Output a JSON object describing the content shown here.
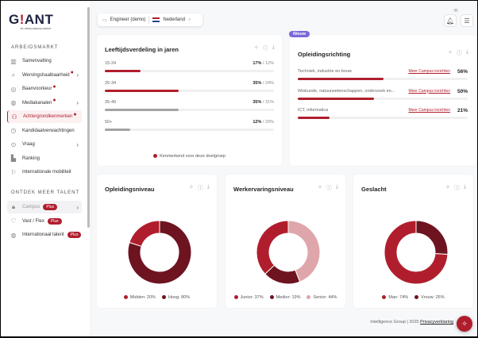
{
  "brand": {
    "logo": "GIANT",
    "tagline": "BY INTELLIGENCE GROUP",
    "accent": "#b01e2d"
  },
  "sidebar": {
    "section1": "ARBEIDSMARKT",
    "items": [
      {
        "label": "Samenvatting",
        "icon": "bar-chart-icon",
        "dot": false,
        "chevron": false
      },
      {
        "label": "Wervingshaalbaarheid",
        "icon": "search-icon",
        "dot": true,
        "chevron": true
      },
      {
        "label": "Baanvoorkeur",
        "icon": "target-icon",
        "dot": true,
        "chevron": false
      },
      {
        "label": "Mediakanalen",
        "icon": "globe-icon",
        "dot": true,
        "chevron": true
      },
      {
        "label": "Achtergrondkenmerken",
        "icon": "users-icon",
        "dot": true,
        "chevron": false,
        "active": true
      },
      {
        "label": "Kandidaatverwachtingen",
        "icon": "clock-icon",
        "dot": false,
        "chevron": false
      },
      {
        "label": "Vraag",
        "icon": "zoom-icon",
        "dot": false,
        "chevron": true
      },
      {
        "label": "Ranking",
        "icon": "podium-icon",
        "dot": false,
        "chevron": false
      },
      {
        "label": "Internationale mobiliteit",
        "icon": "flag-icon",
        "dot": false,
        "chevron": false
      }
    ],
    "section2": "ONTDEK MEER TALENT",
    "items2": [
      {
        "label": "Campus",
        "badge": "Plus",
        "icon": "lock-icon",
        "chevron": true
      },
      {
        "label": "Vast / Flex",
        "badge": "Plus",
        "icon": "handshake-icon"
      },
      {
        "label": "Internationaal talent",
        "badge": "Plus",
        "icon": "globe-icon"
      }
    ]
  },
  "filter": {
    "profession": "Engineer (demo)",
    "country": "Nederland"
  },
  "notifications": {
    "count": "11"
  },
  "age": {
    "title": "Leeftijdsverdeling in jaren",
    "rows": [
      {
        "label": "15-24",
        "value": "17%",
        "compare": "12%",
        "pct": 17,
        "highlight": true
      },
      {
        "label": "25-34",
        "value": "35%",
        "compare": "24%",
        "pct": 35,
        "highlight": true
      },
      {
        "label": "35-49",
        "value": "35%",
        "compare": "31%",
        "pct": 35,
        "highlight": false
      },
      {
        "label": "50+",
        "value": "12%",
        "compare": "33%",
        "pct": 12,
        "highlight": false
      }
    ],
    "legend": "Kenmerkend voor deze doelgroep"
  },
  "study": {
    "badge": "Nieuw",
    "title": "Opleidingsrichting",
    "link": "Meer Campus inzichten",
    "rows": [
      {
        "label": "Techniek, industrie en bouw",
        "value": "56%",
        "pct": 56
      },
      {
        "label": "Wiskunde, natuurwetenschappen, onderzoek en...",
        "value": "50%",
        "pct": 50
      },
      {
        "label": "ICT, informatica",
        "value": "21%",
        "pct": 21
      }
    ]
  },
  "chart_data": [
    {
      "type": "pie",
      "title": "Opleidingsniveau",
      "categories": [
        "Midden",
        "Hoog"
      ],
      "values": [
        20,
        80
      ],
      "labels": [
        "Midden: 20%",
        "Hoog: 80%"
      ],
      "colors": [
        "#b01e2d",
        "#6e1420"
      ]
    },
    {
      "type": "pie",
      "title": "Werkervaringsniveau",
      "categories": [
        "Junior",
        "Medior",
        "Senior"
      ],
      "values": [
        37,
        19,
        44
      ],
      "labels": [
        "Junior: 37%",
        "Medior: 19%",
        "Senior: 44%"
      ],
      "colors": [
        "#b01e2d",
        "#6e1420",
        "#dea6ab"
      ]
    },
    {
      "type": "pie",
      "title": "Geslacht",
      "categories": [
        "Man",
        "Vrouw"
      ],
      "values": [
        74,
        26
      ],
      "labels": [
        "Man: 74%",
        "Vrouw: 26%"
      ],
      "colors": [
        "#b01e2d",
        "#6e1420"
      ]
    }
  ],
  "footer": {
    "text": "Intelligence Group | 2025",
    "privacy": "Privacyverklaring"
  }
}
